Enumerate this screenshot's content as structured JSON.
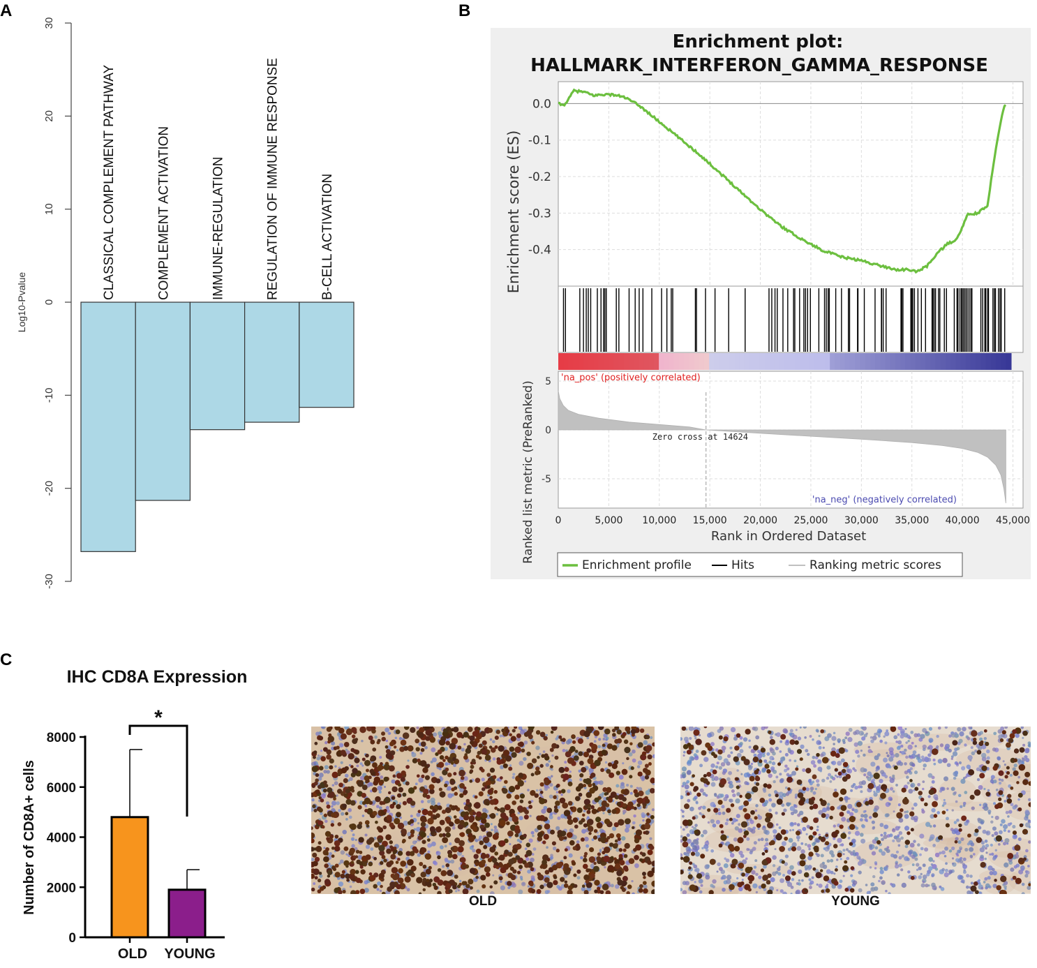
{
  "panels": {
    "a": "A",
    "b": "B",
    "c": "C"
  },
  "chart_data": [
    {
      "type": "bar",
      "panel": "A",
      "title": "",
      "xlabel": "",
      "ylabel": "Log10-Pvalue",
      "ylim": [
        -30,
        30
      ],
      "yticks": [
        "30",
        "20",
        "10",
        "0",
        "-10",
        "-20",
        "-30"
      ],
      "categories": [
        "CLASSICAL COMPLEMENT PATHWAY",
        "COMPLEMENT ACTIVATION",
        "IMMUNE-REGULATION",
        "REGULATION OF IMMUNE RESPONSE",
        "B-CELL ACTIVATION"
      ],
      "values": [
        -26.8,
        -21.3,
        -13.7,
        -12.9,
        -11.3
      ],
      "bar_color": "#add8e6"
    },
    {
      "type": "line",
      "panel": "B",
      "title_line1": "Enrichment plot:",
      "title_line2": "HALLMARK_INTERFERON_GAMMA_RESPONSE",
      "ylabel_es": "Enrichment score (ES)",
      "ylabel_rank": "Ranked list metric (PreRanked)",
      "xlabel": "Rank in Ordered Dataset",
      "xlim": [
        0,
        46000
      ],
      "es_ylim": [
        -0.5,
        0.06
      ],
      "es_yticks": [
        "0.0",
        "-0.1",
        "-0.2",
        "-0.3",
        "-0.4"
      ],
      "rank_ylim": [
        -8,
        6
      ],
      "rank_yticks": [
        "5",
        "0",
        "-5"
      ],
      "xticks": [
        "0",
        "5,000",
        "10,000",
        "15,000",
        "20,000",
        "25,000",
        "30,000",
        "35,000",
        "40,000",
        "45,000"
      ],
      "enrichment_profile": {
        "x": [
          0,
          500,
          1000,
          1500,
          2500,
          3500,
          4500,
          5500,
          6500,
          8000,
          10000,
          12000,
          14000,
          16000,
          18000,
          20000,
          22000,
          24000,
          26000,
          28000,
          30000,
          32000,
          33500,
          34500,
          35500,
          36500,
          37500,
          38500,
          39500,
          40500,
          41500,
          42500,
          43000,
          43500,
          44000,
          44300
        ],
        "y": [
          0.0,
          -0.005,
          0.01,
          0.035,
          0.032,
          0.022,
          0.025,
          0.024,
          0.018,
          -0.005,
          -0.05,
          -0.095,
          -0.14,
          -0.19,
          -0.24,
          -0.29,
          -0.335,
          -0.37,
          -0.4,
          -0.42,
          -0.43,
          -0.445,
          -0.455,
          -0.455,
          -0.46,
          -0.445,
          -0.41,
          -0.385,
          -0.37,
          -0.305,
          -0.3,
          -0.28,
          -0.18,
          -0.09,
          -0.02,
          0.0
        ]
      },
      "ranking_metric": {
        "x": [
          0,
          150,
          500,
          1000,
          2000,
          4000,
          7000,
          10000,
          13000,
          14624,
          20000,
          25000,
          30000,
          35000,
          38000,
          40000,
          41500,
          42500,
          43300,
          43800,
          44100,
          44300
        ],
        "y": [
          4.0,
          3.2,
          2.5,
          2.0,
          1.6,
          1.2,
          0.8,
          0.55,
          0.3,
          0.0,
          -0.35,
          -0.65,
          -0.95,
          -1.3,
          -1.6,
          -1.9,
          -2.3,
          -2.8,
          -3.6,
          -4.6,
          -6.0,
          -7.5
        ]
      },
      "zero_cross_rank": 14624,
      "zero_cross_label": "Zero cross at 14624",
      "na_pos_label": "'na_pos' (positively correlated)",
      "na_neg_label": "'na_neg' (negatively correlated)",
      "legend": [
        "Enrichment profile",
        "Hits",
        "Ranking metric scores"
      ],
      "colors": {
        "profile": "#6cbf3f",
        "hits": "#000000",
        "ranking": "#c0c0c0",
        "pos": "#d62728",
        "neg": "#3a3a9a",
        "na_pos_text": "#e02020",
        "na_neg_text": "#4a4ab0"
      }
    },
    {
      "type": "bar",
      "panel": "C",
      "title": "IHC CD8A Expression",
      "ylabel": "Number of CD8A+ cells",
      "ylim": [
        0,
        8000
      ],
      "yticks": [
        "8000",
        "6000",
        "4000",
        "2000",
        "0"
      ],
      "categories": [
        "OLD",
        "YOUNG"
      ],
      "values": [
        4800,
        1900
      ],
      "errors": [
        2700,
        800
      ],
      "colors": [
        "#f7941d",
        "#8b1e8b"
      ],
      "significance": "*"
    }
  ],
  "micrographs": {
    "old_label": "OLD",
    "young_label": "YOUNG"
  }
}
